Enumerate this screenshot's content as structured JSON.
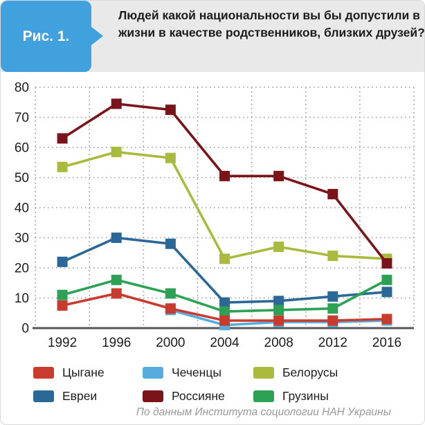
{
  "figure_label": "Рис. 1.",
  "title": "Людей какой национальности вы бы допустили в жизни в качестве родственников, близких друзей?",
  "footer": "По данным Института социологии НАН Украины",
  "colors": {
    "badge_blue": "#41a1dc",
    "header_bg": "#e9e9e9",
    "grid": "#9c9c9c",
    "axis": "#55565a",
    "text": "#1c1c1c",
    "footer_text": "#999999"
  },
  "chart_data": {
    "type": "line",
    "marker": "square",
    "grid": true,
    "legend_position": "bottom",
    "x": [
      "1992",
      "1996",
      "2000",
      "2004",
      "2008",
      "2012",
      "2016"
    ],
    "ylim": [
      0,
      80
    ],
    "yticks": [
      0,
      10,
      20,
      30,
      40,
      50,
      60,
      70,
      80
    ],
    "series": [
      {
        "name": "Цыгане",
        "color": "#c93b2c",
        "values": [
          7.5,
          11.5,
          6.5,
          2.5,
          2.5,
          2.5,
          3
        ]
      },
      {
        "name": "Чеченцы",
        "color": "#57acdf",
        "values": [
          null,
          null,
          6,
          1,
          2,
          2,
          2.5
        ]
      },
      {
        "name": "Белорусы",
        "color": "#a9ba3d",
        "values": [
          53.5,
          58.5,
          56.5,
          23,
          27,
          24,
          23
        ]
      },
      {
        "name": "Евреи",
        "color": "#2a6897",
        "values": [
          22,
          30,
          28,
          8.5,
          9,
          10.5,
          12
        ]
      },
      {
        "name": "Россияне",
        "color": "#7a141a",
        "values": [
          63,
          74.5,
          72.5,
          50.5,
          50.5,
          44.5,
          21.5
        ]
      },
      {
        "name": "Грузины",
        "color": "#2ea254",
        "values": [
          11,
          16,
          11.5,
          5.5,
          6,
          6.5,
          16
        ]
      }
    ],
    "draw_order": [
      1,
      3,
      5,
      0,
      2,
      4
    ]
  }
}
